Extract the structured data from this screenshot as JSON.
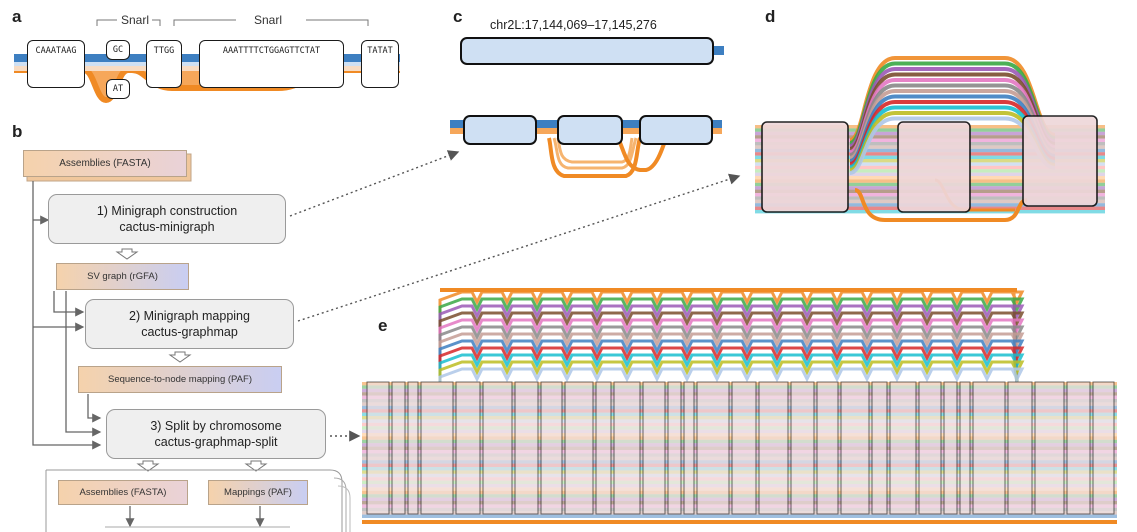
{
  "panels": {
    "a": "a",
    "b": "b",
    "c": "c",
    "d": "d",
    "e": "e"
  },
  "panel_a": {
    "snarl_label": "Snarl",
    "sequences": [
      "CAAATAAG",
      "GC",
      "AT",
      "TTGG",
      "AAATTTTCTGGAGTTCTAT",
      "TATAT"
    ]
  },
  "panel_b": {
    "assemblies": "Assemblies (FASTA)",
    "step1_line1": "1) Minigraph construction",
    "step1_line2": "cactus-minigraph",
    "sv_graph": "SV graph (rGFA)",
    "step2_line1": "2) Minigraph mapping",
    "step2_line2": "cactus-graphmap",
    "seq_to_node": "Sequence-to-node mapping (PAF)",
    "step3_line1": "3) Split by chromosome",
    "step3_line2": "cactus-graphmap-split",
    "out_assemblies": "Assemblies (FASTA)",
    "out_mappings": "Mappings (PAF)"
  },
  "panel_c": {
    "coordinates": "chr2L:17,144,069–17,145,276"
  },
  "colors": {
    "blue_path": "#3d7fc1",
    "orange_path": "#f08a24",
    "node_fill": "#eed7da",
    "file_fill": "#f5d2ac"
  }
}
